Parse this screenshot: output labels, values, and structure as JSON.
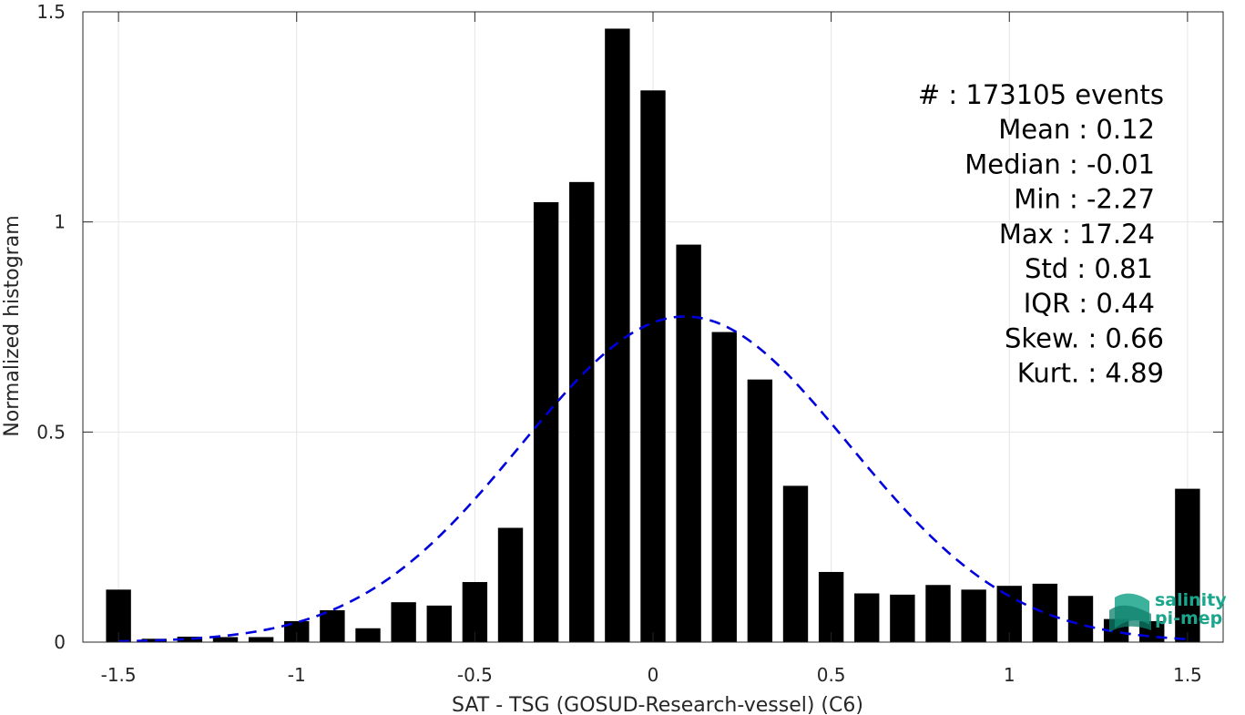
{
  "chart_data": {
    "type": "bar",
    "xlabel": "SAT - TSG (GOSUD-Research-vessel) (C6)",
    "ylabel": "Normalized histogram",
    "xlim": [
      -1.6,
      1.6
    ],
    "ylim": [
      0,
      1.5
    ],
    "grid": true,
    "x_ticks": [
      "-1.5",
      "-1",
      "-0.5",
      "0",
      "0.5",
      "1",
      "1.5"
    ],
    "x_tick_values": [
      -1.5,
      -1,
      -0.5,
      0,
      0.5,
      1,
      1.5
    ],
    "y_ticks": [
      "0",
      "0.5",
      "1",
      "1.5"
    ],
    "y_tick_values": [
      0,
      0.5,
      1,
      1.5
    ],
    "bar_color": "#000000",
    "bar_width": 0.07,
    "bars": [
      {
        "x": -1.5,
        "y": 0.125
      },
      {
        "x": -1.4,
        "y": 0.008
      },
      {
        "x": -1.3,
        "y": 0.013
      },
      {
        "x": -1.2,
        "y": 0.012
      },
      {
        "x": -1.1,
        "y": 0.012
      },
      {
        "x": -1.0,
        "y": 0.05
      },
      {
        "x": -0.9,
        "y": 0.076
      },
      {
        "x": -0.8,
        "y": 0.033
      },
      {
        "x": -0.7,
        "y": 0.095
      },
      {
        "x": -0.6,
        "y": 0.087
      },
      {
        "x": -0.5,
        "y": 0.143
      },
      {
        "x": -0.4,
        "y": 0.272
      },
      {
        "x": -0.3,
        "y": 1.047
      },
      {
        "x": -0.2,
        "y": 1.095
      },
      {
        "x": -0.1,
        "y": 1.46
      },
      {
        "x": 0.0,
        "y": 1.313
      },
      {
        "x": 0.1,
        "y": 0.946
      },
      {
        "x": 0.2,
        "y": 0.738
      },
      {
        "x": 0.3,
        "y": 0.625
      },
      {
        "x": 0.4,
        "y": 0.372
      },
      {
        "x": 0.5,
        "y": 0.167
      },
      {
        "x": 0.6,
        "y": 0.116
      },
      {
        "x": 0.7,
        "y": 0.113
      },
      {
        "x": 0.8,
        "y": 0.136
      },
      {
        "x": 0.9,
        "y": 0.125
      },
      {
        "x": 1.0,
        "y": 0.134
      },
      {
        "x": 1.1,
        "y": 0.139
      },
      {
        "x": 1.2,
        "y": 0.11
      },
      {
        "x": 1.3,
        "y": 0.055
      },
      {
        "x": 1.4,
        "y": 0.05
      },
      {
        "x": 1.5,
        "y": 0.365
      }
    ],
    "fit": {
      "type": "gaussian",
      "mean": 0.09,
      "peak": 0.775,
      "sigma": 0.46,
      "x_range": [
        -1.5,
        1.5
      ],
      "color": "#0000dd",
      "style": "dashed"
    },
    "stats": [
      "#  : 173105 events",
      "Mean : 0.12",
      "Median : -0.01",
      "Min : -2.27",
      "Max : 17.24",
      "Std : 0.81",
      "IQR : 0.44",
      "Skew. : 0.66",
      "Kurt. : 4.89"
    ],
    "stats_position": "top-right"
  },
  "logo": {
    "line1": "salinity",
    "line2": "pi-mep",
    "color": "#1aa58c"
  }
}
